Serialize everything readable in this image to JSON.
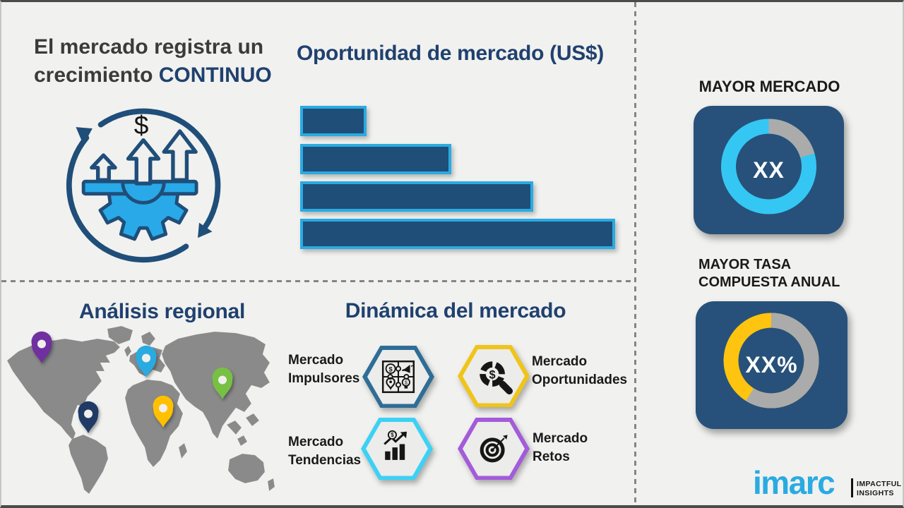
{
  "colors": {
    "background": "#f1f1ef",
    "heading_blue": "#20416f",
    "heading_dark": "#3b3b3b",
    "bar_fill": "#1f4e79",
    "bar_border": "#29abe2",
    "card_bg": "#27517a",
    "donut_gray": "#ababab",
    "map_gray": "#8a8a8a",
    "logo_cyan": "#29abe2",
    "text_black": "#1a1a1a",
    "icon_navy": "#1f4e79",
    "icon_blue": "#29a9e8"
  },
  "growth": {
    "title_line1": "El mercado registra un",
    "title_line2": "crecimiento",
    "title_highlight": "CONTINUO",
    "icon": "growth-cycle-gear-arrows-icon",
    "icon_dollar": "$"
  },
  "chart_data": {
    "type": "bar",
    "orientation": "horizontal",
    "title": "Oportunidad de mercado (US$)",
    "categories": [
      "bar-1",
      "bar-2",
      "bar-3",
      "bar-4"
    ],
    "values": [
      21,
      48,
      74,
      100
    ],
    "value_unit": "percent-of-longest-bar",
    "note": "illustrative unlabeled ascending bars",
    "xlabel": "",
    "ylabel": "",
    "grid": false,
    "legend": false
  },
  "right_panel": {
    "largest_market": {
      "label": "MAYOR MERCADO",
      "value": "XX",
      "ring_main_color": "#35c7f3",
      "ring_gray_deg": 74
    },
    "cagr": {
      "label_line1": "MAYOR TASA",
      "label_line2": "COMPUESTA ANUAL",
      "value": "XX%",
      "ring_main_color": "#ffc40f",
      "ring_gray_deg": 212
    }
  },
  "regional": {
    "title": "Análisis regional",
    "pins": [
      {
        "name": "pin-north-america",
        "color": "#7030a0"
      },
      {
        "name": "pin-europe",
        "color": "#29abe2"
      },
      {
        "name": "pin-east-asia",
        "color": "#77c043"
      },
      {
        "name": "pin-middle-east-africa",
        "color": "#ffc000"
      },
      {
        "name": "pin-south-america",
        "color": "#203a66"
      }
    ]
  },
  "dynamics": {
    "title": "Dinámica del mercado",
    "items": [
      {
        "line1": "Mercado",
        "line2": "Impulsores",
        "border_color": "#2e6e96",
        "icon": "puzzle-icon",
        "text_side": "left"
      },
      {
        "line1": "Mercado",
        "line2": "Oportunidades",
        "border_color": "#f0c419",
        "icon": "magnifier-dollar-icon",
        "text_side": "right"
      },
      {
        "line1": "Mercado",
        "line2": "Tendencias",
        "border_color": "#3cd1f5",
        "icon": "growth-chart-icon",
        "text_side": "left"
      },
      {
        "line1": "Mercado",
        "line2": "Retos",
        "border_color": "#a35bda",
        "icon": "target-dart-icon",
        "text_side": "right"
      }
    ]
  },
  "brand": {
    "logo": "imarc",
    "tagline_line1": "IMPACTFUL",
    "tagline_line2": "INSIGHTS"
  }
}
